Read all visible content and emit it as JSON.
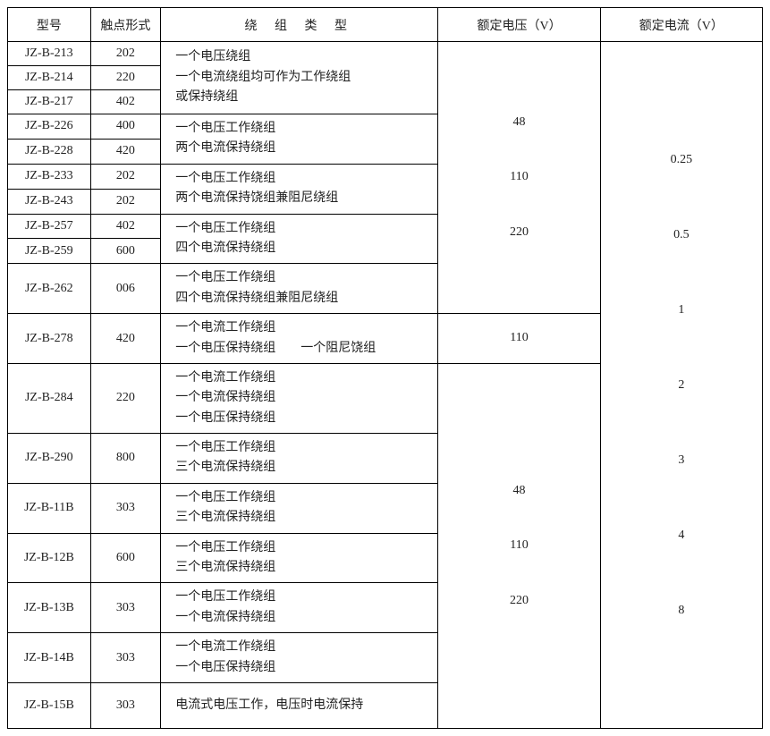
{
  "headers": {
    "model": "型号",
    "contact": "触点形式",
    "winding": "绕 组 类 型",
    "voltage": "额定电压（V）",
    "current": "额定电流（V）"
  },
  "rows": [
    {
      "model": "JZ-B-213",
      "contact": "202"
    },
    {
      "model": "JZ-B-214",
      "contact": "220"
    },
    {
      "model": "JZ-B-217",
      "contact": "402"
    },
    {
      "model": "JZ-B-226",
      "contact": "400"
    },
    {
      "model": "JZ-B-228",
      "contact": "420"
    },
    {
      "model": "JZ-B-233",
      "contact": "202"
    },
    {
      "model": "JZ-B-243",
      "contact": "202"
    },
    {
      "model": "JZ-B-257",
      "contact": "402"
    },
    {
      "model": "JZ-B-259",
      "contact": "600"
    },
    {
      "model": "JZ-B-262",
      "contact": "006"
    },
    {
      "model": "JZ-B-278",
      "contact": "420"
    },
    {
      "model": "JZ-B-284",
      "contact": "220"
    },
    {
      "model": "JZ-B-290",
      "contact": "800"
    },
    {
      "model": "JZ-B-11B",
      "contact": "303"
    },
    {
      "model": "JZ-B-12B",
      "contact": "600"
    },
    {
      "model": "JZ-B-13B",
      "contact": "303"
    },
    {
      "model": "JZ-B-14B",
      "contact": "303"
    },
    {
      "model": "JZ-B-15B",
      "contact": "303"
    }
  ],
  "windings": {
    "w1": "一个电压绕组\n一个电流绕组均可作为工作绕组\n或保持绕组",
    "w2": "一个电压工作绕组\n两个电流保持绕组",
    "w3": "一个电压工作绕组\n两个电流保持饶组兼阻尼绕组",
    "w4": "一个电压工作绕组\n四个电流保持绕组",
    "w5": "一个电压工作绕组\n四个电流保持绕组兼阻尼绕组",
    "w6": "一个电流工作绕组\n一个电压保持绕组  一个阻尼饶组",
    "w7": "一个电流工作绕组\n一个电流保持绕组\n一个电压保持绕组",
    "w8": "一个电压工作绕组\n三个电流保持绕组",
    "w9": "一个电压工作绕组\n三个电流保持绕组",
    "w10": "一个电压工作绕组\n三个电流保持绕组",
    "w11": "一个电压工作绕组\n一个电流保持绕组",
    "w12": "一个电流工作绕组\n一个电压保持绕组",
    "w13": "电流式电压工作，电压时电流保持"
  },
  "voltage_group1": "48\n\n110\n\n220",
  "voltage_278": "110",
  "voltage_group2": "48\n\n110\n\n220",
  "current_all": "0.25\n\n0.5\n\n1\n\n2\n\n3\n\n4\n\n8"
}
